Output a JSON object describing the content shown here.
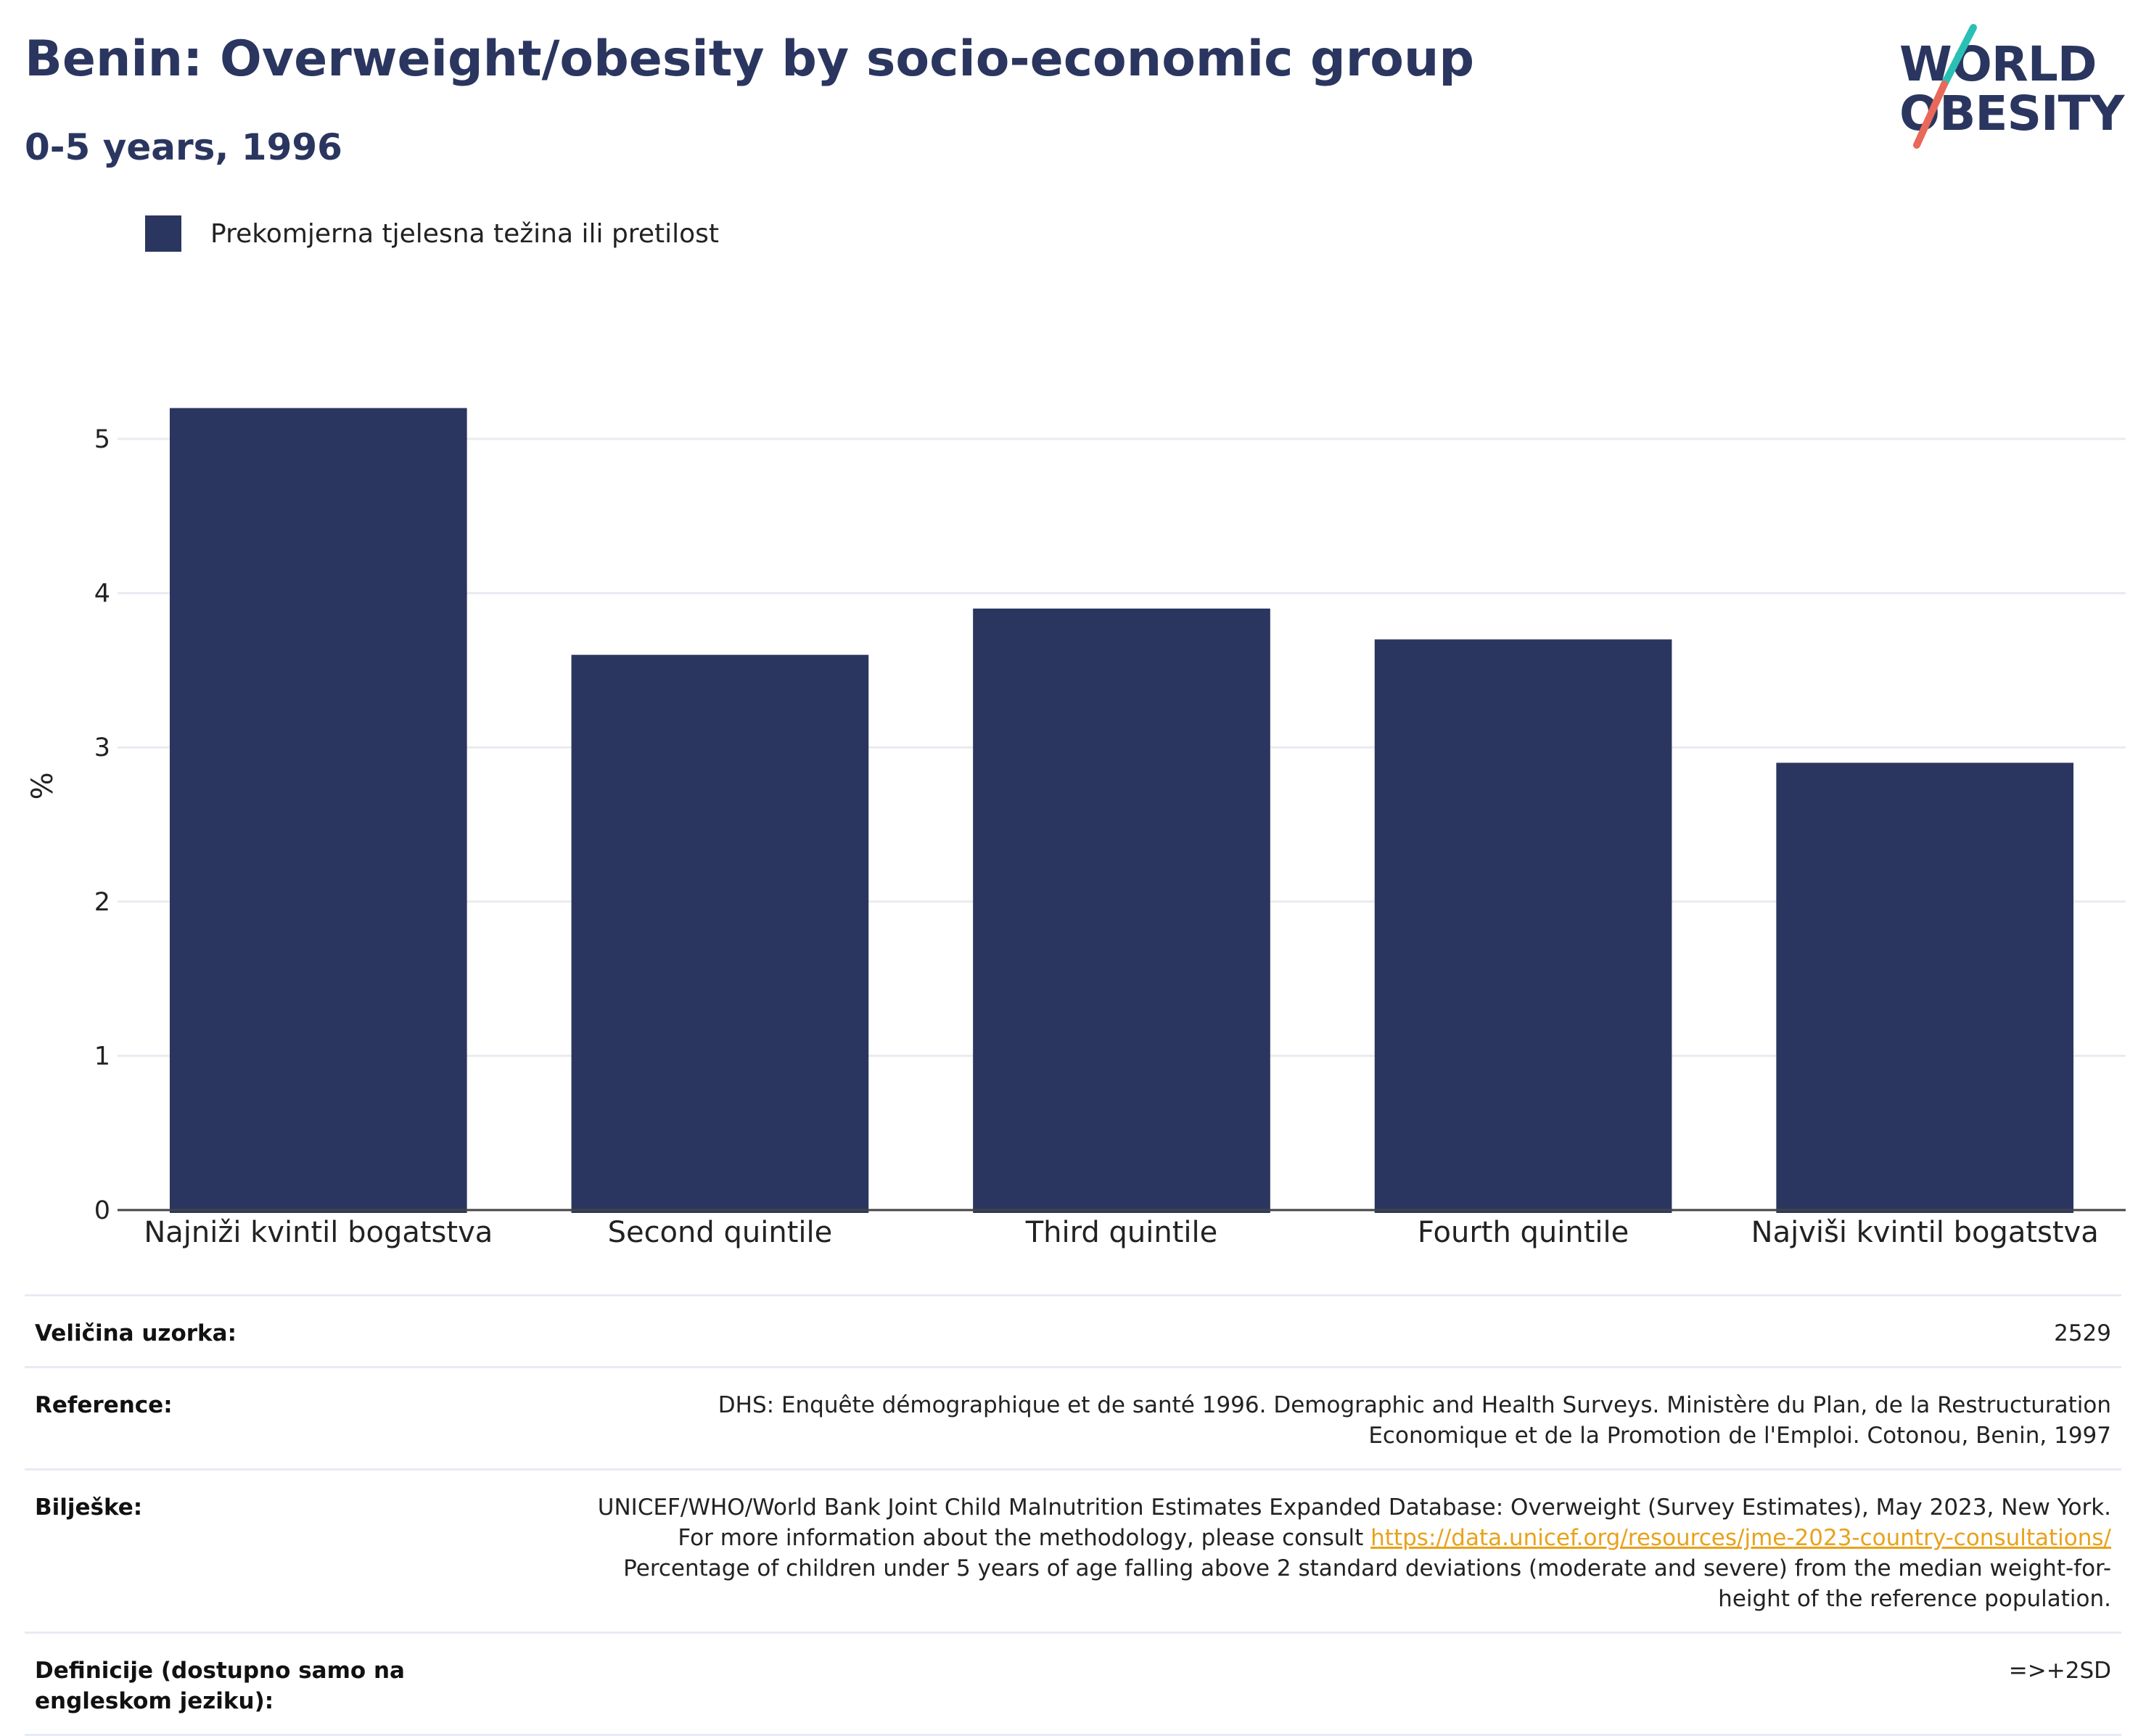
{
  "header": {
    "title": "Benin: Overweight/obesity by socio-economic group",
    "subtitle": "0-5 years, 1996"
  },
  "logo": {
    "line1": "WORLD",
    "line2": "OBESITY",
    "colors": {
      "text": "#2a365f",
      "slash_top": "#2bbfb5",
      "slash_bottom": "#e8685a"
    }
  },
  "legend": {
    "label": "Prekomjerna tjelesna težina ili pretilost",
    "color": "#2a365f"
  },
  "chart_data": {
    "type": "bar",
    "categories": [
      "Najniži kvintil bogatstva",
      "Second quintile",
      "Third quintile",
      "Fourth quintile",
      "Najviši kvintil bogatstva"
    ],
    "series": [
      {
        "name": "Prekomjerna tjelesna težina ili pretilost",
        "values": [
          5.2,
          3.6,
          3.9,
          3.7,
          2.9
        ],
        "color": "#2a365f"
      }
    ],
    "ylabel": "%",
    "xlabel": "",
    "ylim": [
      0,
      5.5
    ],
    "yticks": [
      0,
      1,
      2,
      3,
      4,
      5
    ],
    "grid": true
  },
  "info": {
    "sample_size": {
      "label": "Veličina uzorka:",
      "value": "2529"
    },
    "references": {
      "label": "Reference:",
      "value": "DHS: Enquête démographique et de santé 1996. Demographic and Health Surveys. Ministère du Plan, de la Restructuration Economique et de la Promotion de l'Emploi. Cotonou, Benin, 1997"
    },
    "notes": {
      "label": "Bilješke:",
      "text_before": "UNICEF/WHO/World Bank Joint Child Malnutrition Estimates Expanded Database: Overweight (Survey Estimates), May 2023, New York. For more information about the methodology, please consult ",
      "link": "https://data.unicef.org/resources/jme-2023-country-consultations/",
      "text_after": " Percentage of children under 5 years of age falling above 2 standard deviations (moderate and severe) from the median weight-for-height of the reference population."
    },
    "definitions": {
      "label": "Definicije (dostupno samo na engleskom jeziku):",
      "value": "=>+2SD"
    }
  }
}
